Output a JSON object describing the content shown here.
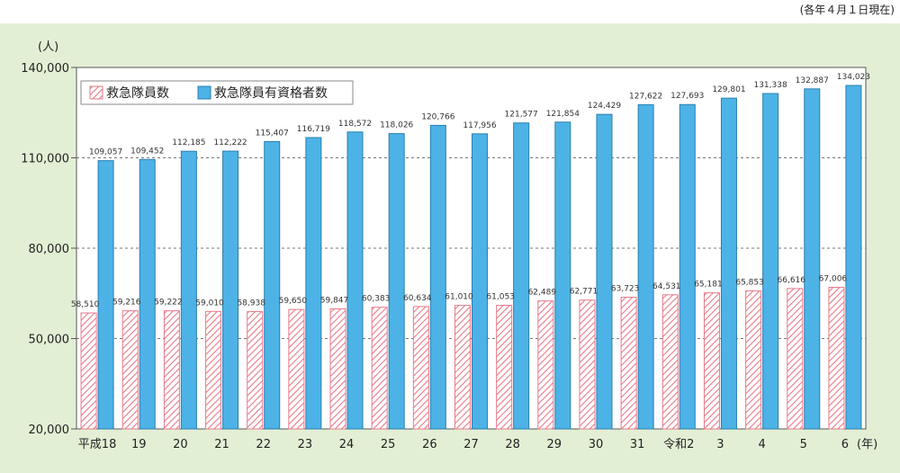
{
  "note": "(各年４月１日現在)",
  "chart_data": {
    "type": "bar",
    "ylabel": "(人)",
    "xunit": "(年)",
    "ylim": [
      20000,
      140000
    ],
    "yticks": [
      "140,000",
      "110,000",
      "80,000",
      "50,000",
      "20,000"
    ],
    "ytick_values": [
      140000,
      110000,
      80000,
      50000,
      20000
    ],
    "grid": "horizontal dashed",
    "legend_position": "top-left",
    "categories": [
      "平成18",
      "19",
      "20",
      "21",
      "22",
      "23",
      "24",
      "25",
      "26",
      "27",
      "28",
      "29",
      "30",
      "31",
      "令和2",
      "3",
      "4",
      "5",
      "6"
    ],
    "series": [
      {
        "name": "救急隊員数",
        "color": "#e87a8a",
        "pattern": "hatched",
        "values": [
          58510,
          59216,
          59222,
          59010,
          58938,
          59650,
          59847,
          60383,
          60634,
          61010,
          61053,
          62489,
          62771,
          63723,
          64531,
          65181,
          65853,
          66616,
          67006
        ],
        "labels": [
          "58,510",
          "59,216",
          "59,222",
          "59,010",
          "58,938",
          "59,650",
          "59,847",
          "60,383",
          "60,634",
          "61,010",
          "61,053",
          "62,489",
          "62,771",
          "63,723",
          "64,531",
          "65,181",
          "65,853",
          "66,616",
          "67,006"
        ]
      },
      {
        "name": "救急隊員有資格者数",
        "color": "#4db3e6",
        "pattern": "solid",
        "values": [
          109057,
          109452,
          112185,
          112222,
          115407,
          116719,
          118572,
          118026,
          120766,
          117956,
          121577,
          121854,
          124429,
          127622,
          127693,
          129801,
          131338,
          132887,
          134023
        ],
        "labels": [
          "109,057",
          "109,452",
          "112,185",
          "112,222",
          "115,407",
          "116,719",
          "118,572",
          "118,026",
          "120,766",
          "117,956",
          "121,577",
          "121,854",
          "124,429",
          "127,622",
          "127,693",
          "129,801",
          "131,338",
          "132,887",
          "134,023"
        ]
      }
    ]
  }
}
